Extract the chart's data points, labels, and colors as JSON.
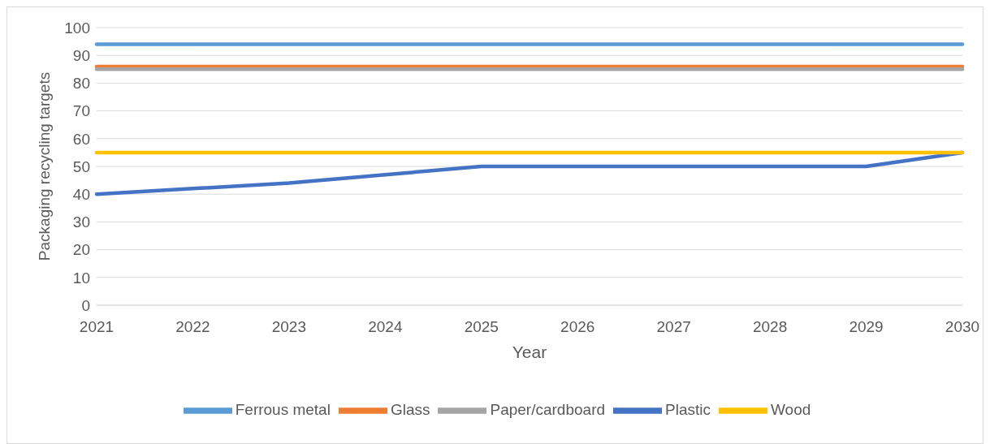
{
  "chart_data": {
    "type": "line",
    "xlabel": "Year",
    "ylabel": "Packaging recycling targets",
    "categories": [
      "2021",
      "2022",
      "2023",
      "2024",
      "2025",
      "2026",
      "2027",
      "2028",
      "2029",
      "2030"
    ],
    "series": [
      {
        "name": "Plastic",
        "color": "#4472c4",
        "values": [
          40,
          42,
          44,
          47,
          50,
          50,
          50,
          50,
          50,
          55
        ]
      },
      {
        "name": "Glass",
        "color": "#ed7d31",
        "values": [
          86,
          86,
          86,
          86,
          86,
          86,
          86,
          86,
          86,
          86
        ]
      },
      {
        "name": "Paper/cardboard",
        "color": "#a5a5a5",
        "values": [
          85,
          85,
          85,
          85,
          85,
          85,
          85,
          85,
          85,
          85
        ]
      },
      {
        "name": "Wood",
        "color": "#ffc000",
        "values": [
          55,
          55,
          55,
          55,
          55,
          55,
          55,
          55,
          55,
          55
        ]
      },
      {
        "name": "Ferrous metal",
        "color": "#5b9bd5",
        "values": [
          94,
          94,
          94,
          94,
          94,
          94,
          94,
          94,
          94,
          94
        ]
      }
    ],
    "ylim": [
      0,
      100
    ],
    "yticks": [
      0,
      10,
      20,
      30,
      40,
      50,
      60,
      70,
      80,
      90,
      100
    ],
    "grid": "y",
    "legend": "bottom",
    "marker": "none",
    "line_style": "solid"
  }
}
